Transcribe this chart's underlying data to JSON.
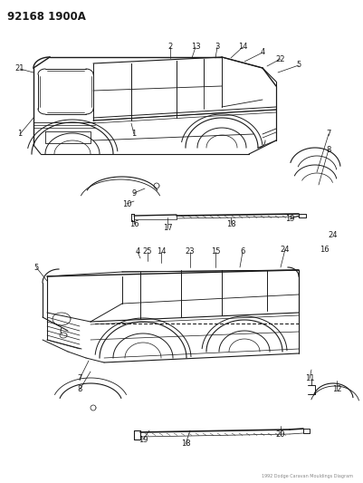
{
  "title": "92168 1900A",
  "bg_color": "#ffffff",
  "line_color": "#1a1a1a",
  "fig_width": 4.02,
  "fig_height": 5.33,
  "dpi": 100,
  "title_fontsize": 8.5,
  "title_fontweight": "bold"
}
